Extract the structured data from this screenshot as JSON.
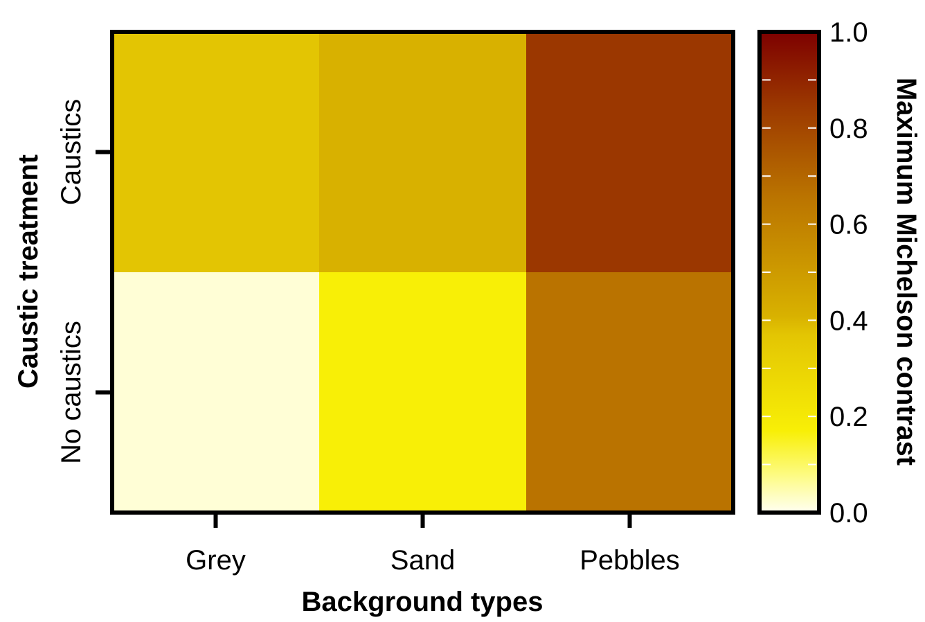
{
  "chart_data": {
    "type": "heatmap",
    "xlabel": "Background types",
    "ylabel": "Caustic treatment",
    "x_categories": [
      "Grey",
      "Sand",
      "Pebbles"
    ],
    "y_categories": [
      "Caustics",
      "No caustics"
    ],
    "values": [
      [
        0.37,
        0.41,
        0.85
      ],
      [
        0.02,
        0.17,
        0.66
      ]
    ],
    "colorbar": {
      "label": "Maximum Michelson contrast",
      "range": [
        0.0,
        1.0
      ],
      "ticks": [
        "0.0",
        "0.2",
        "0.4",
        "0.6",
        "0.8",
        "1.0"
      ],
      "colormap_stops": [
        {
          "v": 0.0,
          "color": "#fffff2"
        },
        {
          "v": 0.08,
          "color": "#fdfb80"
        },
        {
          "v": 0.17,
          "color": "#f8ef06"
        },
        {
          "v": 0.37,
          "color": "#e3c503"
        },
        {
          "v": 0.41,
          "color": "#d8b100"
        },
        {
          "v": 0.66,
          "color": "#ba7300"
        },
        {
          "v": 0.85,
          "color": "#9b3700"
        },
        {
          "v": 1.0,
          "color": "#7d0000"
        }
      ]
    },
    "grid": false,
    "legend": "colorbar-right"
  }
}
